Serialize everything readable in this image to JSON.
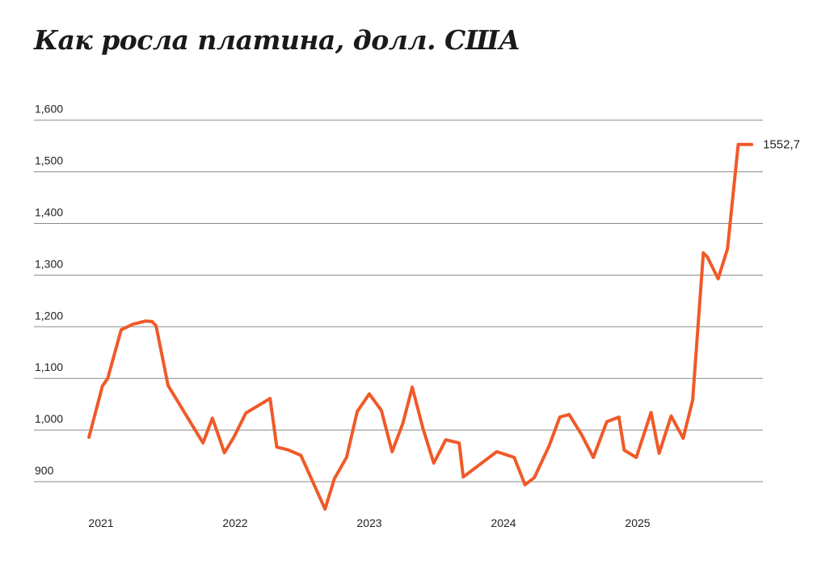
{
  "chart_data": {
    "type": "line",
    "title": "Как росла платина, долл. США",
    "xlabel": "",
    "ylabel": "",
    "ylim": [
      900,
      1600
    ],
    "yticks": [
      900,
      1000,
      1100,
      1200,
      1300,
      1400,
      1500,
      1600
    ],
    "ytick_labels": [
      "900",
      "1,000",
      "1,100",
      "1,200",
      "1,300",
      "1,400",
      "1,500",
      "1,600"
    ],
    "xticks": [
      2021,
      2022,
      2023,
      2024,
      2025
    ],
    "xtick_labels": [
      "2021",
      "2022",
      "2023",
      "2024",
      "2025"
    ],
    "grid": true,
    "color": "#f05a28",
    "end_label": "1552,7",
    "series": [
      {
        "name": "Платина",
        "x": [
          2020.91,
          2021.01,
          2021.05,
          2021.15,
          2021.24,
          2021.33,
          2021.38,
          2021.41,
          2021.5,
          2021.76,
          2021.83,
          2021.92,
          2021.99,
          2022.08,
          2022.26,
          2022.31,
          2022.39,
          2022.49,
          2022.67,
          2022.74,
          2022.83,
          2022.91,
          2023.0,
          2023.09,
          2023.17,
          2023.25,
          2023.32,
          2023.4,
          2023.48,
          2023.57,
          2023.67,
          2023.7,
          2023.95,
          2024.08,
          2024.16,
          2024.23,
          2024.34,
          2024.42,
          2024.49,
          2024.58,
          2024.67,
          2024.77,
          2024.86,
          2024.9,
          2024.99,
          2025.1,
          2025.16,
          2025.25,
          2025.34,
          2025.41,
          2025.49,
          2025.52,
          2025.6,
          2025.67,
          2025.75,
          2025.85
        ],
        "values": [
          986,
          1085,
          1100,
          1194,
          1205,
          1211,
          1210,
          1202,
          1086,
          975,
          1023,
          956,
          986,
          1033,
          1061,
          967,
          962,
          951,
          847,
          906,
          947,
          1036,
          1070,
          1038,
          958,
          1013,
          1083,
          1003,
          936,
          981,
          975,
          909,
          958,
          947,
          894,
          908,
          969,
          1025,
          1030,
          992,
          947,
          1016,
          1025,
          961,
          947,
          1034,
          955,
          1027,
          984,
          1058,
          1343,
          1335,
          1293,
          1351,
          1553,
          1553
        ]
      }
    ]
  }
}
